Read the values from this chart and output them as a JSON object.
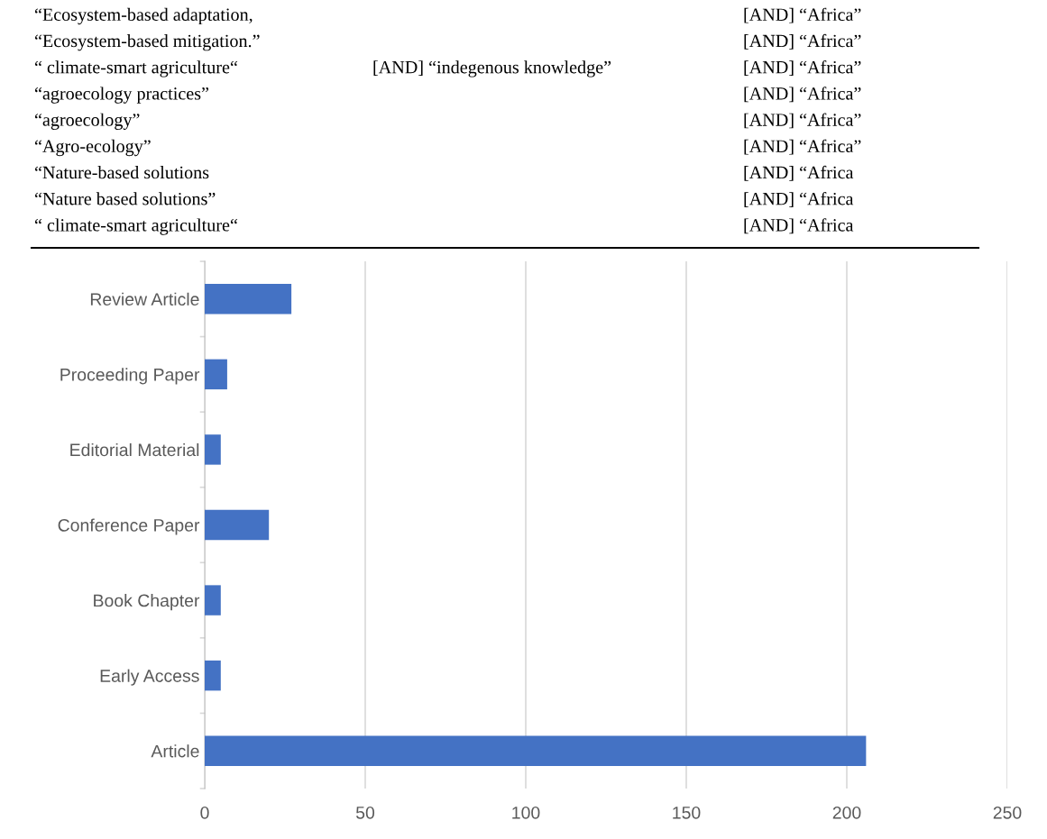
{
  "chart_data": {
    "type": "bar",
    "orientation": "horizontal",
    "categories": [
      "Review Article",
      "Proceeding Paper",
      "Editorial Material",
      "Conference Paper",
      "Book Chapter",
      "Early Access",
      "Article"
    ],
    "values": [
      27,
      7,
      5,
      20,
      5,
      5,
      206
    ],
    "color": "#4472c4",
    "xlim": [
      0,
      250
    ],
    "xticks": [
      0,
      50,
      100,
      150,
      200,
      250
    ],
    "grid": "x",
    "annotations": [
      "“Ecosystem-based adaptation,\t\t[AND] “Africa”",
      "“Ecosystem-based mitigation.”\t\t[AND] “Africa”",
      "“ climate-smart agriculture“\t[AND] “indegenous knowledge”\t[AND] “Africa”",
      "“agroecology practices”\t\t[AND] “Africa”",
      "“agroecology”\t\t[AND] “Africa”",
      "“Agro-ecology”\t\t[AND] “Africa”",
      "“Nature-based solutions\t\t[AND] “Africa",
      "“Nature based solutions”\t\t[AND] “Africa",
      "“ climate-smart agriculture“\t\t[AND] “Africa"
    ]
  }
}
